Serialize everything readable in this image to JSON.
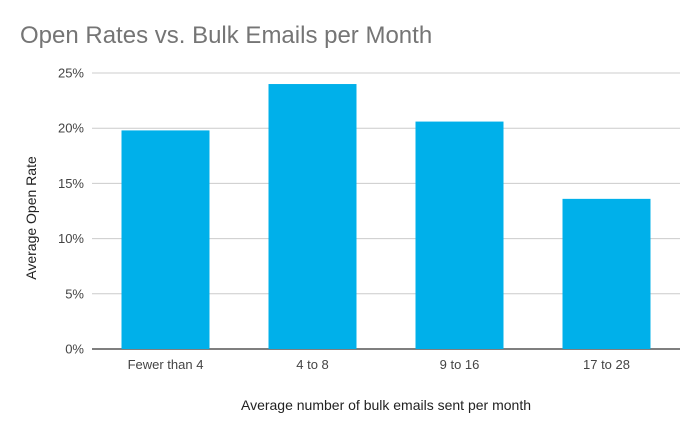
{
  "chart_data": {
    "type": "bar",
    "title": "Open Rates vs. Bulk Emails per Month",
    "xlabel": "Average number of bulk emails sent per month",
    "ylabel": "Average Open Rate",
    "categories": [
      "Fewer than 4",
      "4 to 8",
      "9 to 16",
      "17 to 28"
    ],
    "values": [
      19.8,
      24.0,
      20.6,
      13.6
    ],
    "ylim": [
      0,
      25
    ],
    "yticks": [
      0,
      5,
      10,
      15,
      20,
      25
    ],
    "ytick_labels": [
      "0%",
      "5%",
      "10%",
      "15%",
      "20%",
      "25%"
    ],
    "grid": true,
    "bar_color": "#00b0ea",
    "grid_color": "#cccccc"
  }
}
